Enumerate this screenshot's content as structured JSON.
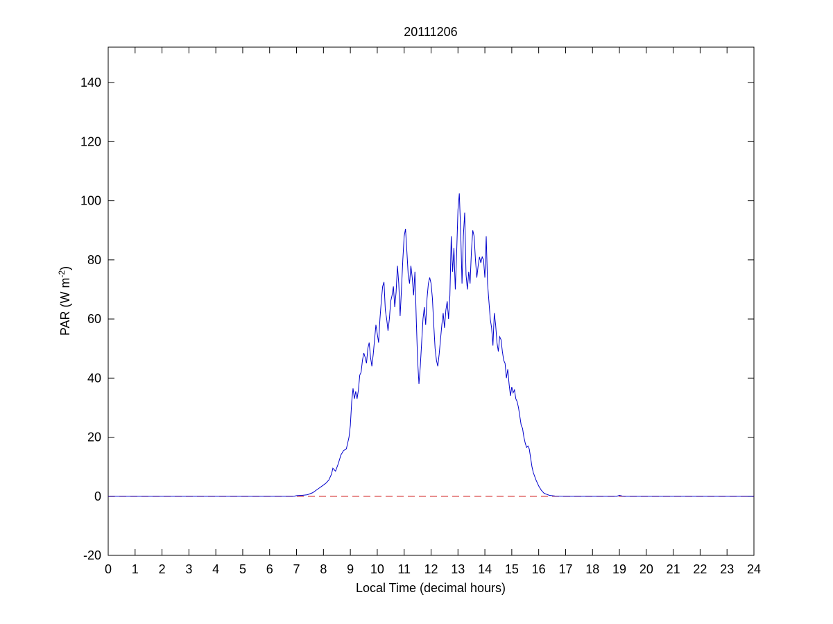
{
  "chart_data": {
    "type": "line",
    "title": "20111206",
    "xlabel": "Local Time (decimal hours)",
    "ylabel": "PAR (W m",
    "ylabel_sup": "-2",
    "ylabel_close": ")",
    "xlim": [
      0,
      24
    ],
    "ylim": [
      -20,
      152
    ],
    "xticks": [
      0,
      1,
      2,
      3,
      4,
      5,
      6,
      7,
      8,
      9,
      10,
      11,
      12,
      13,
      14,
      15,
      16,
      17,
      18,
      19,
      20,
      21,
      22,
      23,
      24
    ],
    "yticks": [
      -20,
      0,
      20,
      40,
      60,
      80,
      100,
      120,
      140
    ],
    "grid": false,
    "legend": "none",
    "colors": {
      "series": "#0000cc",
      "baseline": "#cc0000",
      "axes": "#000000"
    },
    "series": [
      {
        "values_xy": [
          [
            0,
            0
          ],
          [
            6.9,
            0
          ],
          [
            7.0,
            0.2
          ],
          [
            7.2,
            0.3
          ],
          [
            7.4,
            0.5
          ],
          [
            7.6,
            1.2
          ],
          [
            7.8,
            2.5
          ],
          [
            8.0,
            3.8
          ],
          [
            8.1,
            4.5
          ],
          [
            8.2,
            5.5
          ],
          [
            8.3,
            7.5
          ],
          [
            8.35,
            9.5
          ],
          [
            8.45,
            8.5
          ],
          [
            8.55,
            11
          ],
          [
            8.65,
            14
          ],
          [
            8.75,
            15.5
          ],
          [
            8.85,
            16
          ],
          [
            8.95,
            20
          ],
          [
            9.0,
            24
          ],
          [
            9.05,
            32
          ],
          [
            9.1,
            36.5
          ],
          [
            9.15,
            33
          ],
          [
            9.2,
            35.5
          ],
          [
            9.25,
            33
          ],
          [
            9.3,
            36
          ],
          [
            9.35,
            41
          ],
          [
            9.4,
            42
          ],
          [
            9.45,
            46
          ],
          [
            9.5,
            48.5
          ],
          [
            9.55,
            47
          ],
          [
            9.6,
            45
          ],
          [
            9.65,
            50
          ],
          [
            9.7,
            52
          ],
          [
            9.75,
            47
          ],
          [
            9.8,
            44
          ],
          [
            9.85,
            48
          ],
          [
            9.9,
            53
          ],
          [
            9.95,
            58
          ],
          [
            10.0,
            55
          ],
          [
            10.05,
            52
          ],
          [
            10.1,
            60
          ],
          [
            10.15,
            66
          ],
          [
            10.2,
            71
          ],
          [
            10.25,
            72.5
          ],
          [
            10.3,
            63
          ],
          [
            10.35,
            60
          ],
          [
            10.4,
            56
          ],
          [
            10.45,
            60
          ],
          [
            10.5,
            66
          ],
          [
            10.55,
            68
          ],
          [
            10.6,
            71
          ],
          [
            10.65,
            64
          ],
          [
            10.7,
            69
          ],
          [
            10.75,
            78
          ],
          [
            10.8,
            72
          ],
          [
            10.85,
            61
          ],
          [
            10.9,
            70
          ],
          [
            10.95,
            80
          ],
          [
            11.0,
            88
          ],
          [
            11.05,
            90.5
          ],
          [
            11.1,
            83
          ],
          [
            11.15,
            75
          ],
          [
            11.2,
            72
          ],
          [
            11.25,
            78
          ],
          [
            11.3,
            74
          ],
          [
            11.35,
            68
          ],
          [
            11.4,
            76
          ],
          [
            11.45,
            60
          ],
          [
            11.5,
            46
          ],
          [
            11.55,
            38
          ],
          [
            11.6,
            44
          ],
          [
            11.65,
            52
          ],
          [
            11.7,
            60
          ],
          [
            11.75,
            64
          ],
          [
            11.8,
            58
          ],
          [
            11.85,
            67
          ],
          [
            11.9,
            72
          ],
          [
            11.95,
            74
          ],
          [
            12.0,
            72
          ],
          [
            12.05,
            67
          ],
          [
            12.1,
            58
          ],
          [
            12.15,
            50
          ],
          [
            12.2,
            46
          ],
          [
            12.25,
            44
          ],
          [
            12.3,
            48
          ],
          [
            12.35,
            53
          ],
          [
            12.4,
            58
          ],
          [
            12.45,
            62
          ],
          [
            12.5,
            57
          ],
          [
            12.55,
            63
          ],
          [
            12.6,
            66
          ],
          [
            12.65,
            60
          ],
          [
            12.7,
            68
          ],
          [
            12.75,
            88
          ],
          [
            12.8,
            76
          ],
          [
            12.85,
            84
          ],
          [
            12.9,
            70
          ],
          [
            12.95,
            82
          ],
          [
            13.0,
            97
          ],
          [
            13.05,
            102.5
          ],
          [
            13.1,
            90
          ],
          [
            13.15,
            72
          ],
          [
            13.2,
            88
          ],
          [
            13.25,
            96
          ],
          [
            13.3,
            75
          ],
          [
            13.35,
            70
          ],
          [
            13.4,
            76
          ],
          [
            13.45,
            72
          ],
          [
            13.5,
            83
          ],
          [
            13.55,
            90
          ],
          [
            13.6,
            88
          ],
          [
            13.65,
            80
          ],
          [
            13.7,
            74
          ],
          [
            13.75,
            78
          ],
          [
            13.8,
            81
          ],
          [
            13.85,
            79
          ],
          [
            13.9,
            81
          ],
          [
            13.95,
            80
          ],
          [
            14.0,
            74
          ],
          [
            14.05,
            88
          ],
          [
            14.1,
            72
          ],
          [
            14.15,
            66
          ],
          [
            14.2,
            60
          ],
          [
            14.25,
            57
          ],
          [
            14.3,
            51
          ],
          [
            14.35,
            62
          ],
          [
            14.4,
            58
          ],
          [
            14.45,
            52
          ],
          [
            14.5,
            49
          ],
          [
            14.55,
            54
          ],
          [
            14.6,
            53
          ],
          [
            14.65,
            49
          ],
          [
            14.7,
            46
          ],
          [
            14.75,
            45
          ],
          [
            14.8,
            40
          ],
          [
            14.85,
            43
          ],
          [
            14.9,
            38
          ],
          [
            14.95,
            34
          ],
          [
            15.0,
            37
          ],
          [
            15.05,
            35
          ],
          [
            15.1,
            36
          ],
          [
            15.15,
            33
          ],
          [
            15.2,
            32
          ],
          [
            15.25,
            30
          ],
          [
            15.3,
            27
          ],
          [
            15.35,
            24
          ],
          [
            15.4,
            23
          ],
          [
            15.45,
            20
          ],
          [
            15.5,
            18
          ],
          [
            15.55,
            16.5
          ],
          [
            15.6,
            17
          ],
          [
            15.65,
            16
          ],
          [
            15.7,
            13
          ],
          [
            15.75,
            10
          ],
          [
            15.8,
            8
          ],
          [
            15.9,
            5.5
          ],
          [
            16.0,
            3.5
          ],
          [
            16.1,
            2
          ],
          [
            16.2,
            1
          ],
          [
            16.4,
            0.3
          ],
          [
            16.6,
            0.1
          ],
          [
            17.0,
            0
          ],
          [
            18.9,
            0
          ],
          [
            19.0,
            0.3
          ],
          [
            19.1,
            0.1
          ],
          [
            19.2,
            0
          ],
          [
            24,
            0
          ]
        ]
      }
    ]
  }
}
